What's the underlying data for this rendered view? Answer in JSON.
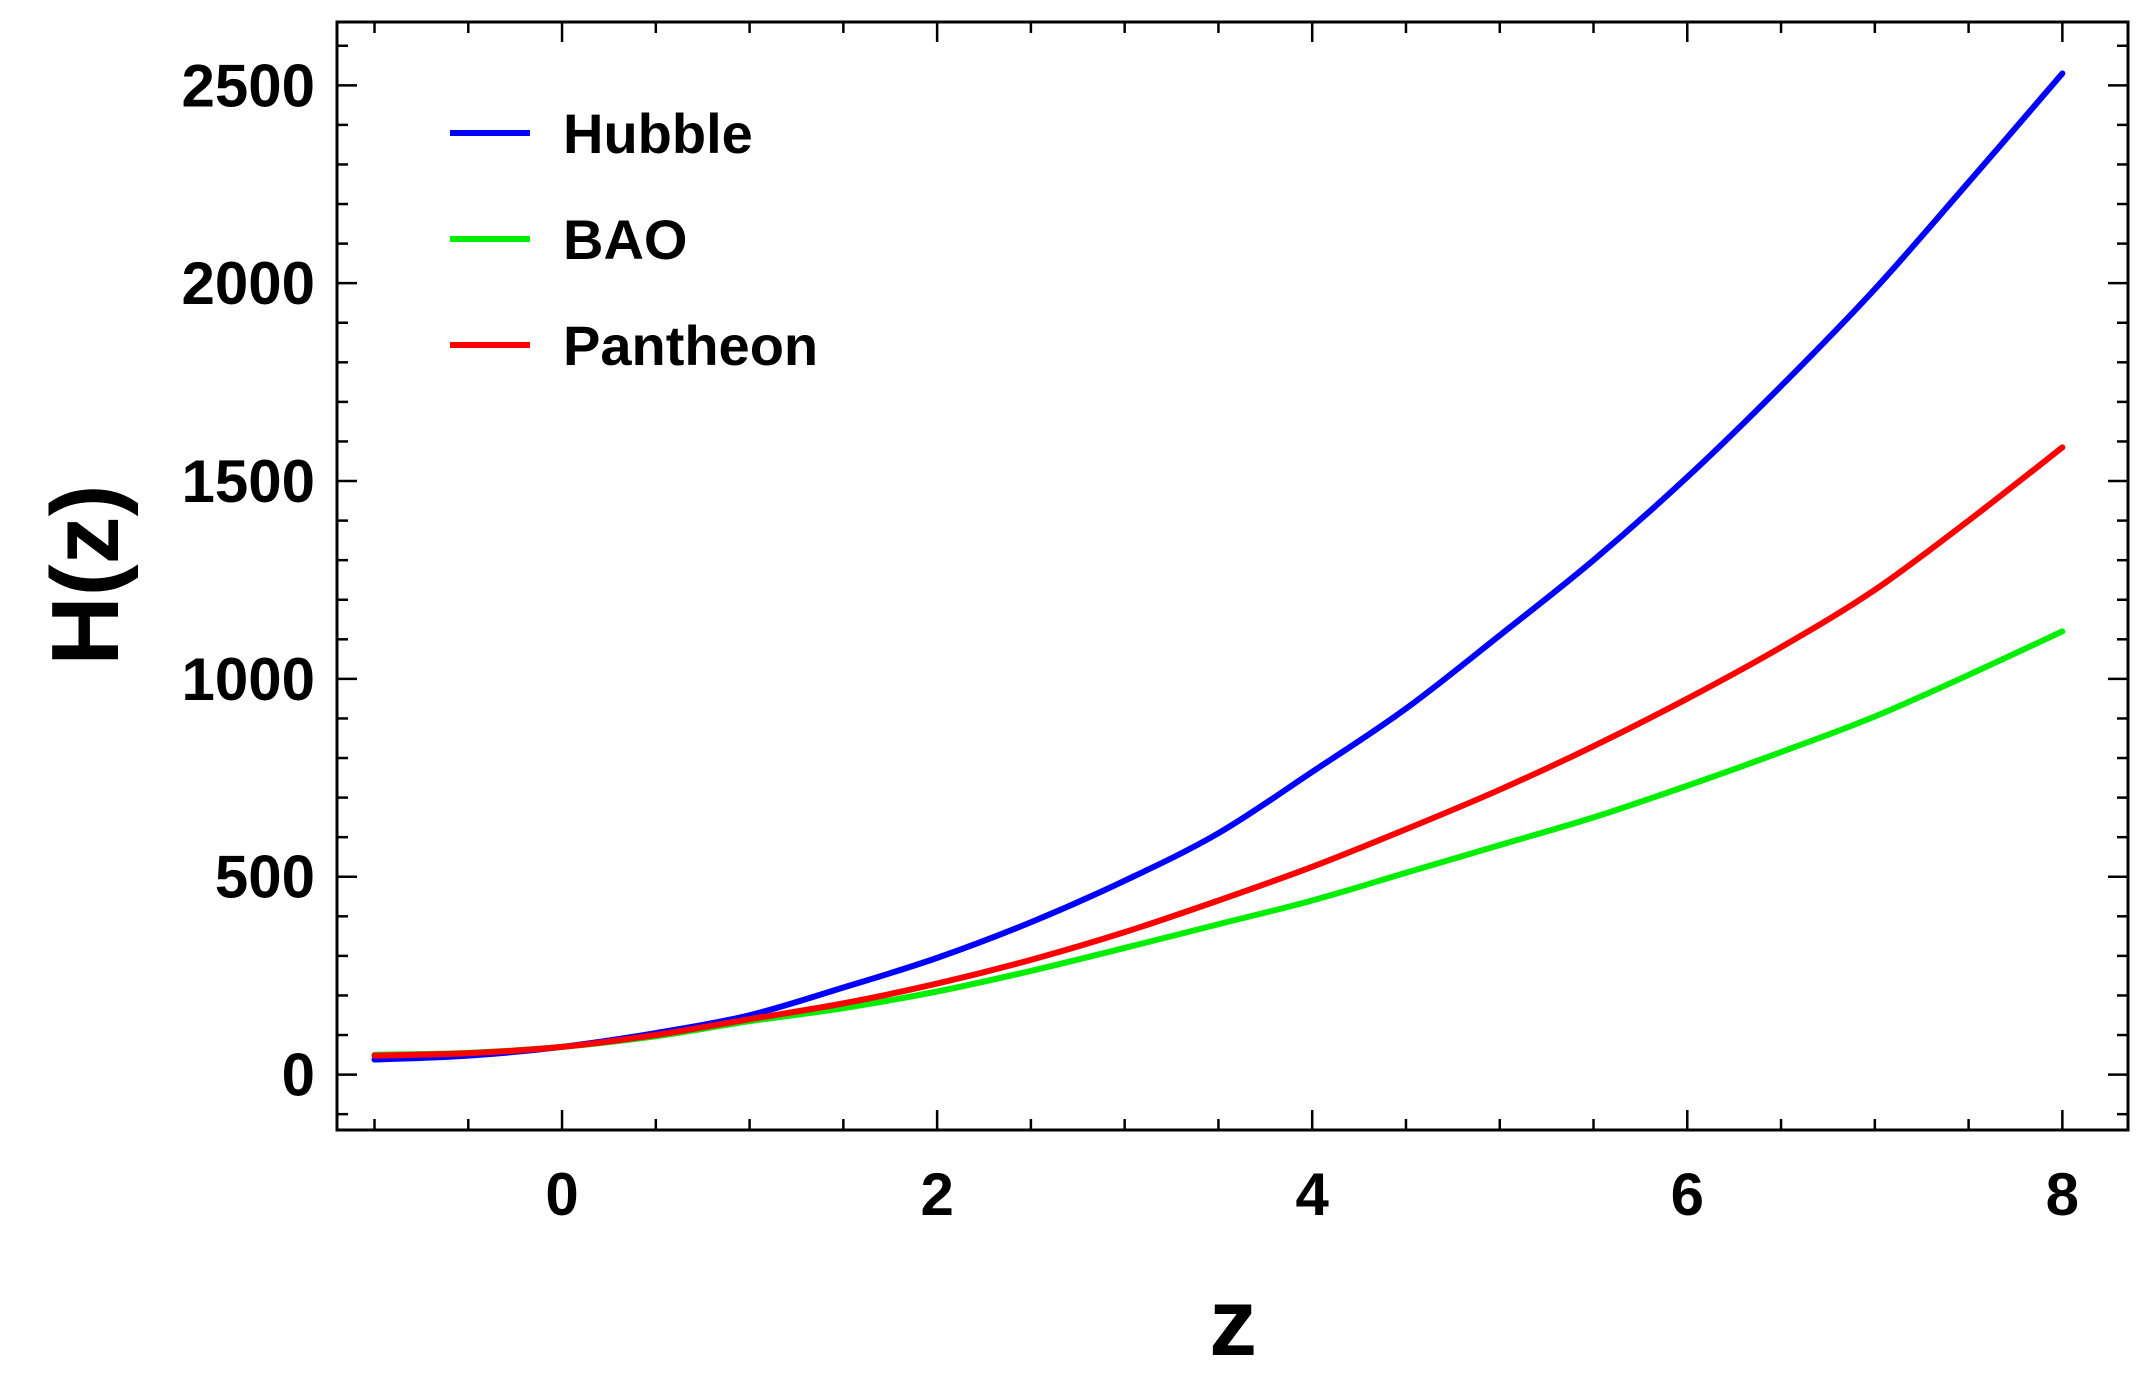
{
  "chart_data": {
    "type": "line",
    "title": "",
    "xlabel": "z",
    "ylabel": "H(z)",
    "xlim": [
      -1.2,
      8.35
    ],
    "ylim": [
      -140,
      2660
    ],
    "x_ticks": [
      0,
      2,
      4,
      6,
      8
    ],
    "x_tick_labels": [
      "0",
      "2",
      "4",
      "6",
      "8"
    ],
    "x_minor_step": 0.5,
    "y_ticks": [
      0,
      500,
      1000,
      1500,
      2000,
      2500
    ],
    "y_tick_labels": [
      "0",
      "500",
      "1000",
      "1500",
      "2000",
      "2500"
    ],
    "y_minor_step": 100,
    "grid": false,
    "legend_position": "top-left",
    "x": [
      -1,
      -0.5,
      0,
      0.5,
      1,
      1.5,
      2,
      2.5,
      3,
      3.5,
      4,
      4.5,
      5,
      5.5,
      6,
      6.5,
      7,
      7.5,
      8
    ],
    "series": [
      {
        "name": "Hubble",
        "color": "#0000ff",
        "values": [
          38,
          48,
          70,
          105,
          150,
          220,
          295,
          385,
          490,
          610,
          765,
          925,
          1110,
          1300,
          1510,
          1740,
          1985,
          2255,
          2530
        ]
      },
      {
        "name": "BAO",
        "color": "#00ee00",
        "values": [
          50,
          55,
          70,
          97,
          135,
          168,
          210,
          262,
          320,
          380,
          440,
          510,
          580,
          650,
          730,
          815,
          905,
          1010,
          1120
        ]
      },
      {
        "name": "Pantheon",
        "color": "#ff0000",
        "values": [
          48,
          54,
          70,
          100,
          140,
          180,
          230,
          290,
          360,
          440,
          525,
          620,
          720,
          830,
          950,
          1080,
          1225,
          1400,
          1585
        ]
      }
    ]
  }
}
